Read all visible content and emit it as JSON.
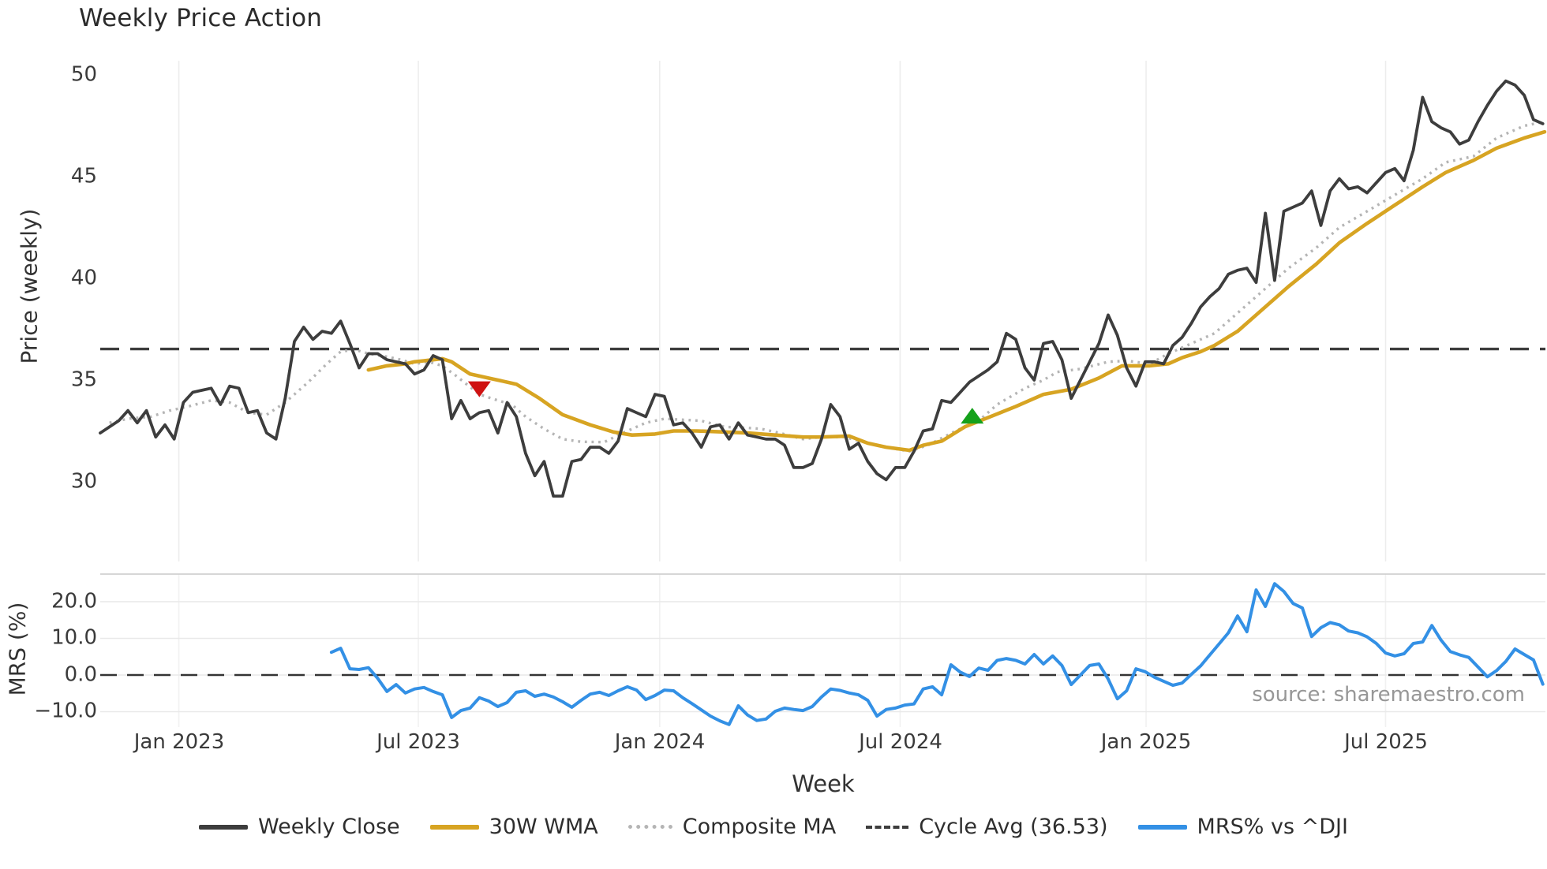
{
  "title": "Weekly Price Action",
  "source_text": "source: sharemaestro.com",
  "colors": {
    "weekly_close": "#3d3d3d",
    "wma_30w": "#d7a422",
    "composite_ma": "#b5b5b5",
    "cycle_avg": "#3d3d3d",
    "mrs_line": "#3390e5",
    "sell_marker": "#cf1212",
    "buy_marker": "#15a11b",
    "grid": "#ededed",
    "panel_border": "#c9c9c9"
  },
  "legend": [
    {
      "label": "Weekly Close",
      "swatch": "solid-dark"
    },
    {
      "label": "30W WMA",
      "swatch": "solid-gold"
    },
    {
      "label": "Composite MA",
      "swatch": "dotted"
    },
    {
      "label": "Cycle Avg (36.53)",
      "swatch": "dashed"
    },
    {
      "label": "MRS% vs ^DJI",
      "swatch": "solid-blue"
    }
  ],
  "chart_data": {
    "type": "line",
    "xlabel": "Week",
    "xlim_weeks": [
      0,
      156.2
    ],
    "xticks": [
      {
        "week": 8.5,
        "label": "Jan 2023"
      },
      {
        "week": 34.4,
        "label": "Jul 2023"
      },
      {
        "week": 60.5,
        "label": "Jan 2024"
      },
      {
        "week": 86.5,
        "label": "Jul 2024"
      },
      {
        "week": 113.1,
        "label": "Jan 2025"
      },
      {
        "week": 139.0,
        "label": "Jul 2025"
      }
    ],
    "panels": [
      {
        "name": "price",
        "ylabel": "Price (weekly)",
        "ylim": [
          28.3,
          51.3
        ],
        "yticks": [
          {
            "value": 50,
            "label": "50"
          },
          {
            "value": 45,
            "label": "45"
          },
          {
            "value": 40,
            "label": "40"
          },
          {
            "value": 35,
            "label": "35"
          },
          {
            "value": 30,
            "label": "30"
          }
        ],
        "series": [
          {
            "name": "Weekly Close",
            "style": "solid",
            "color": "#3d3d3d",
            "start_week": 0,
            "step": 1,
            "values": [
              32.4,
              32.7,
              33.0,
              33.5,
              32.9,
              33.5,
              32.2,
              32.8,
              32.1,
              33.9,
              34.4,
              34.5,
              34.6,
              33.8,
              34.7,
              34.6,
              33.4,
              33.5,
              32.4,
              32.1,
              34.1,
              36.9,
              37.6,
              37.0,
              37.4,
              37.3,
              37.9,
              36.8,
              35.6,
              36.3,
              36.3,
              36.0,
              35.9,
              35.8,
              35.3,
              35.5,
              36.2,
              36.0,
              33.1,
              34.0,
              33.1,
              33.4,
              33.5,
              32.4,
              33.9,
              33.2,
              31.4,
              30.3,
              31.0,
              29.3,
              29.3,
              31.0,
              31.1,
              31.7,
              31.7,
              31.4,
              32.0,
              33.6,
              33.4,
              33.2,
              34.3,
              34.2,
              32.8,
              32.9,
              32.4,
              31.7,
              32.7,
              32.8,
              32.1,
              32.9,
              32.3,
              32.2,
              32.1,
              32.1,
              31.8,
              30.7,
              30.7,
              30.9,
              32.1,
              33.8,
              33.2,
              31.6,
              31.9,
              31.0,
              30.4,
              30.1,
              30.7,
              30.7,
              31.5,
              32.5,
              32.6,
              34.0,
              33.9,
              34.4,
              34.9,
              35.2,
              35.5,
              35.9,
              37.3,
              37.0,
              35.6,
              35.0,
              36.8,
              36.9,
              36.0,
              34.1,
              35.0,
              35.9,
              36.8,
              38.2,
              37.2,
              35.6,
              34.7,
              35.9,
              35.9,
              35.8,
              36.7,
              37.1,
              37.8,
              38.6,
              39.1,
              39.5,
              40.2,
              40.4,
              40.5,
              39.8,
              43.2,
              39.9,
              43.3,
              43.5,
              43.7,
              44.3,
              42.6,
              44.3,
              44.9,
              44.4,
              44.5,
              44.2,
              44.7,
              45.2,
              45.4,
              44.8,
              46.3,
              48.9,
              47.7,
              47.4,
              47.2,
              46.6,
              46.8,
              47.7,
              48.5,
              49.2,
              49.7,
              49.5,
              49.0,
              47.8,
              47.6
            ]
          },
          {
            "name": "30W WMA",
            "style": "solid",
            "color": "#d7a422",
            "points": [
              [
                29,
                35.5
              ],
              [
                30,
                35.6
              ],
              [
                31,
                35.7
              ],
              [
                32,
                35.75
              ],
              [
                33,
                35.8
              ],
              [
                34,
                35.9
              ],
              [
                35,
                35.95
              ],
              [
                36,
                36.0
              ],
              [
                37,
                36.05
              ],
              [
                38,
                35.9
              ],
              [
                40,
                35.3
              ],
              [
                42.5,
                35.05
              ],
              [
                45,
                34.8
              ],
              [
                47.5,
                34.1
              ],
              [
                50,
                33.3
              ],
              [
                53,
                32.8
              ],
              [
                55.5,
                32.45
              ],
              [
                57.5,
                32.3
              ],
              [
                60,
                32.35
              ],
              [
                62,
                32.5
              ],
              [
                64.5,
                32.5
              ],
              [
                67.5,
                32.45
              ],
              [
                70,
                32.4
              ],
              [
                73,
                32.3
              ],
              [
                76,
                32.2
              ],
              [
                78,
                32.2
              ],
              [
                81,
                32.25
              ],
              [
                83,
                31.9
              ],
              [
                85,
                31.7
              ],
              [
                87.5,
                31.55
              ],
              [
                89,
                31.8
              ],
              [
                91,
                32.0
              ],
              [
                93.5,
                32.7
              ],
              [
                96.5,
                33.25
              ],
              [
                99,
                33.7
              ],
              [
                102,
                34.3
              ],
              [
                105,
                34.55
              ],
              [
                108,
                35.1
              ],
              [
                110.5,
                35.7
              ],
              [
                113.5,
                35.7
              ],
              [
                115.5,
                35.8
              ],
              [
                117,
                36.1
              ],
              [
                119,
                36.4
              ],
              [
                120.5,
                36.7
              ],
              [
                123,
                37.4
              ],
              [
                125.5,
                38.4
              ],
              [
                128.5,
                39.6
              ],
              [
                131.5,
                40.7
              ],
              [
                134,
                41.75
              ],
              [
                137,
                42.7
              ],
              [
                140,
                43.6
              ],
              [
                143,
                44.5
              ],
              [
                145.5,
                45.2
              ],
              [
                148.5,
                45.8
              ],
              [
                151,
                46.4
              ],
              [
                154,
                46.9
              ],
              [
                156.2,
                47.2
              ]
            ]
          },
          {
            "name": "Composite MA",
            "style": "dotted",
            "color": "#b5b5b5",
            "points": [
              [
                1,
                32.9
              ],
              [
                3,
                33.1
              ],
              [
                5.5,
                33.2
              ],
              [
                7.5,
                33.5
              ],
              [
                9.5,
                33.7
              ],
              [
                12,
                34.0
              ],
              [
                14,
                33.9
              ],
              [
                16,
                33.4
              ],
              [
                18,
                33.3
              ],
              [
                20,
                33.9
              ],
              [
                22.5,
                34.9
              ],
              [
                24.5,
                35.8
              ],
              [
                26,
                36.4
              ],
              [
                27.5,
                36.5
              ],
              [
                29,
                36.3
              ],
              [
                31,
                36.15
              ],
              [
                32.5,
                36.0
              ],
              [
                34,
                35.8
              ],
              [
                35.5,
                35.9
              ],
              [
                37,
                35.7
              ],
              [
                38.5,
                35.2
              ],
              [
                41,
                34.3
              ],
              [
                43,
                34.0
              ],
              [
                44.5,
                33.8
              ],
              [
                46,
                33.2
              ],
              [
                48,
                32.6
              ],
              [
                50,
                32.1
              ],
              [
                52,
                31.97
              ],
              [
                54.5,
                31.95
              ],
              [
                56.5,
                32.4
              ],
              [
                59,
                32.9
              ],
              [
                61,
                33.1
              ],
              [
                63,
                33.05
              ],
              [
                65,
                33.0
              ],
              [
                67.5,
                32.7
              ],
              [
                70,
                32.65
              ],
              [
                71.5,
                32.6
              ],
              [
                73.5,
                32.4
              ],
              [
                76,
                32.1
              ],
              [
                78,
                32.2
              ],
              [
                80.5,
                32.2
              ],
              [
                83,
                31.9
              ],
              [
                85,
                31.7
              ],
              [
                87.5,
                31.5
              ],
              [
                89.5,
                31.8
              ],
              [
                92.5,
                32.5
              ],
              [
                95,
                33.0
              ],
              [
                97,
                33.8
              ],
              [
                100,
                34.6
              ],
              [
                102,
                35.0
              ],
              [
                103.5,
                35.4
              ],
              [
                106,
                35.55
              ],
              [
                109,
                35.9
              ],
              [
                111,
                35.95
              ],
              [
                113.5,
                35.8
              ],
              [
                115.5,
                36.3
              ],
              [
                118,
                36.8
              ],
              [
                120.5,
                37.3
              ],
              [
                123,
                38.3
              ],
              [
                125.5,
                39.3
              ],
              [
                128.5,
                40.5
              ],
              [
                131.5,
                41.5
              ],
              [
                134,
                42.5
              ],
              [
                137,
                43.3
              ],
              [
                140,
                44.1
              ],
              [
                143,
                44.9
              ],
              [
                145.5,
                45.7
              ],
              [
                148.5,
                46.0
              ],
              [
                151,
                46.9
              ],
              [
                154,
                47.5
              ],
              [
                156.2,
                47.7
              ]
            ]
          },
          {
            "name": "Cycle Avg (36.53)",
            "type": "hline",
            "style": "dashed",
            "color": "#3d3d3d",
            "value": 36.53
          }
        ],
        "markers": [
          {
            "type": "sell",
            "shape": "triangle-down",
            "color": "#cf1212",
            "week": 41,
            "price": 34.55
          },
          {
            "type": "buy",
            "shape": "triangle-up",
            "color": "#15a11b",
            "week": 94.3,
            "price": 33.25
          }
        ]
      },
      {
        "name": "mrs",
        "ylabel": "MRS (%)",
        "ylim": [
          -14.2,
          27.5
        ],
        "yticks": [
          {
            "value": 20,
            "label": "20.0"
          },
          {
            "value": 10,
            "label": "10.0"
          },
          {
            "value": 0,
            "label": "0.0"
          },
          {
            "value": -10,
            "label": "−10.0"
          }
        ],
        "zero_line": {
          "value": 0,
          "style": "dashed",
          "color": "#333333"
        },
        "series": [
          {
            "name": "MRS% vs ^DJI",
            "style": "solid",
            "color": "#3390e5",
            "start_week": 25,
            "step": 1,
            "values": [
              6.2,
              7.3,
              1.7,
              1.5,
              2.0,
              -0.9,
              -4.5,
              -2.6,
              -4.9,
              -3.8,
              -3.4,
              -4.5,
              -5.4,
              -11.6,
              -9.7,
              -9.0,
              -6.2,
              -7.1,
              -8.6,
              -7.5,
              -4.7,
              -4.3,
              -5.8,
              -5.2,
              -6.0,
              -7.3,
              -8.8,
              -6.9,
              -5.2,
              -4.7,
              -5.6,
              -4.3,
              -3.2,
              -4.1,
              -6.7,
              -5.6,
              -4.1,
              -4.3,
              -6.2,
              -7.8,
              -9.5,
              -11.2,
              -12.5,
              -13.5,
              -8.4,
              -10.9,
              -12.4,
              -12.0,
              -9.9,
              -9.0,
              -9.4,
              -9.7,
              -8.6,
              -6.0,
              -3.8,
              -4.2,
              -4.9,
              -5.4,
              -6.9,
              -11.2,
              -9.4,
              -9.0,
              -8.2,
              -7.9,
              -3.8,
              -3.2,
              -5.4,
              2.8,
              0.8,
              -0.4,
              1.9,
              1.3,
              4.0,
              4.5,
              4.0,
              3.0,
              5.6,
              3.0,
              5.2,
              2.6,
              -2.6,
              0.0,
              2.6,
              3.0,
              -1.1,
              -6.5,
              -4.3,
              1.7,
              0.9,
              -0.6,
              -1.7,
              -2.8,
              -2.2,
              0.2,
              2.5,
              5.5,
              8.5,
              11.5,
              16.1,
              11.8,
              23.2,
              18.7,
              24.9,
              22.8,
              19.5,
              18.3,
              10.5,
              12.9,
              14.3,
              13.7,
              12.0,
              11.5,
              10.4,
              8.6,
              6.0,
              5.2,
              5.8,
              8.6,
              9.0,
              13.5,
              9.5,
              6.4,
              5.5,
              4.8,
              2.2,
              -0.5,
              1.2,
              3.7,
              7.1,
              5.6,
              4.1,
              -2.5
            ]
          }
        ]
      }
    ]
  }
}
